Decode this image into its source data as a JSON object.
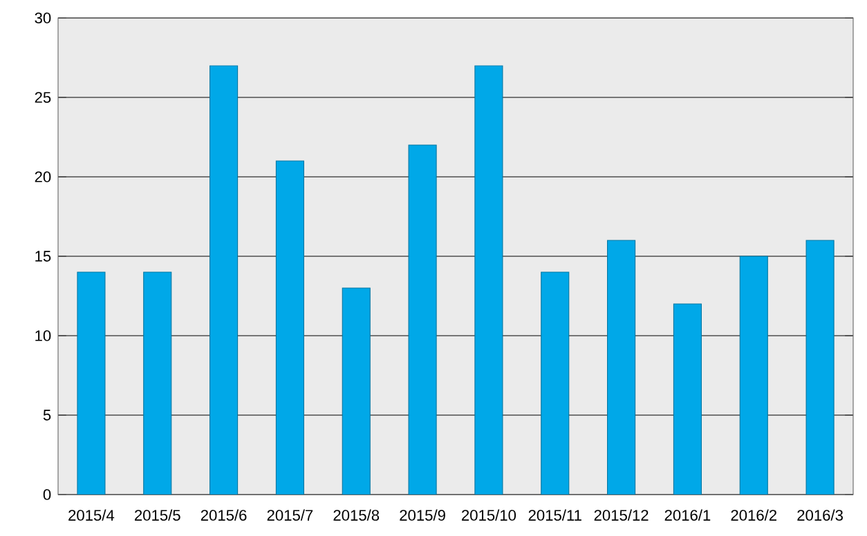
{
  "chart_data": {
    "type": "bar",
    "categories": [
      "2015/4",
      "2015/5",
      "2015/6",
      "2015/7",
      "2015/8",
      "2015/9",
      "2015/10",
      "2015/11",
      "2015/12",
      "2016/1",
      "2016/2",
      "2016/3"
    ],
    "values": [
      14,
      14,
      27,
      21,
      13,
      22,
      27,
      14,
      16,
      12,
      15,
      16
    ],
    "color": "#00a8e8",
    "ylim": [
      0,
      30
    ],
    "yticks": [
      0,
      5,
      10,
      15,
      20,
      25,
      30
    ],
    "grid": "y"
  }
}
